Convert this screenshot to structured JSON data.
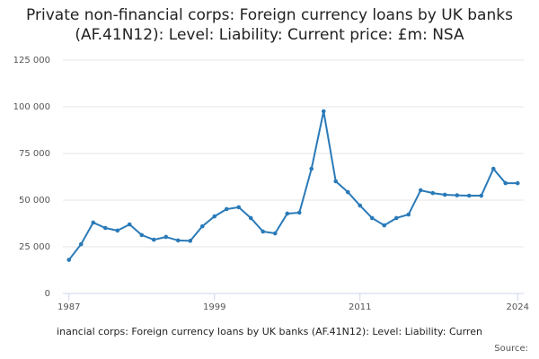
{
  "chart_data": {
    "type": "line",
    "title": "Private non-financial corps: Foreign currency loans by UK banks (AF.41N12): Level: Liability: Current price: £m: NSA",
    "caption": "inancial corps: Foreign currency loans by UK banks (AF.41N12): Level: Liability: Curren",
    "source": "Source:",
    "x": [
      1987,
      1988,
      1989,
      1990,
      1991,
      1992,
      1993,
      1994,
      1995,
      1996,
      1997,
      1998,
      1999,
      2000,
      2001,
      2002,
      2003,
      2004,
      2005,
      2006,
      2007,
      2008,
      2009,
      2010,
      2011,
      2012,
      2013,
      2014,
      2015,
      2016,
      2017,
      2018,
      2019,
      2020,
      2021,
      2022,
      2023,
      2024
    ],
    "series": [
      {
        "name": "Foreign currency loans",
        "color": "#2a7ab8",
        "values": [
          18000,
          26400,
          38000,
          35100,
          33700,
          37000,
          31300,
          28800,
          30300,
          28400,
          28200,
          36000,
          41300,
          45200,
          46200,
          40400,
          33200,
          32200,
          42800,
          43300,
          66800,
          97600,
          60100,
          54300,
          47100,
          40400,
          36500,
          40400,
          42300,
          55300,
          53800,
          52900,
          52600,
          52400,
          52400,
          66800,
          59100,
          59100
        ]
      }
    ],
    "xlim": [
      1986.5,
      2024.5
    ],
    "xticks": [
      1987,
      1999,
      2011,
      2024
    ],
    "ylim": [
      0,
      125000
    ],
    "yticks": [
      0,
      {
        "value": 25000,
        "label": "25 000"
      },
      {
        "value": 50000,
        "label": "50 000"
      },
      {
        "value": 75000,
        "label": "75 000"
      },
      {
        "value": 100000,
        "label": "100 000"
      },
      {
        "value": 125000,
        "label": "125 000"
      }
    ],
    "grid": true
  }
}
